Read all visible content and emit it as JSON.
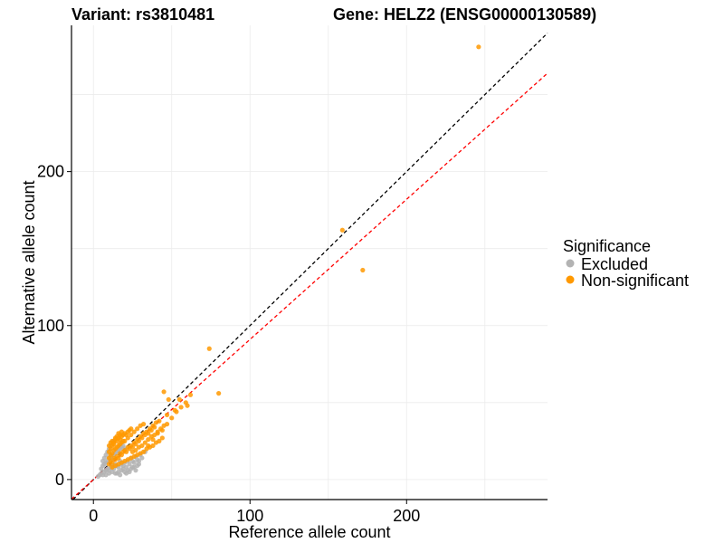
{
  "chart_data": {
    "type": "scatter",
    "title_left": "Variant: rs3810481",
    "title_right": "Gene: HELZ2 (ENSG00000130589)",
    "xlabel": "Reference allele count",
    "ylabel": "Alternative allele count",
    "xlim": [
      -14,
      290
    ],
    "ylim": [
      -13,
      295
    ],
    "x_ticks": [
      0,
      100,
      200
    ],
    "y_ticks": [
      0,
      100,
      200
    ],
    "x_tick_labels": [
      "0",
      "100",
      "200"
    ],
    "y_tick_labels": [
      "0",
      "100",
      "200"
    ],
    "grid": true,
    "legend": {
      "title": "Significance",
      "position": "right",
      "entries": [
        {
          "label": "Excluded",
          "color": "#b3b3b3"
        },
        {
          "label": "Non-significant",
          "color": "#ff9900"
        }
      ]
    },
    "reference_lines": [
      {
        "name": "identity",
        "slope": 1.0,
        "intercept": 0,
        "color": "#000000",
        "dash": true
      },
      {
        "name": "fit",
        "slope": 0.91,
        "intercept": 0,
        "color": "#ff0000",
        "dash": true
      }
    ],
    "series": [
      {
        "name": "Excluded",
        "color": "#b3b3b3",
        "points": [
          [
            3,
            2
          ],
          [
            4,
            3
          ],
          [
            5,
            4
          ],
          [
            6,
            3
          ],
          [
            7,
            5
          ],
          [
            8,
            6
          ],
          [
            9,
            7
          ],
          [
            10,
            6
          ],
          [
            11,
            8
          ],
          [
            12,
            9
          ],
          [
            13,
            7
          ],
          [
            14,
            10
          ],
          [
            15,
            9
          ],
          [
            16,
            8
          ],
          [
            17,
            12
          ],
          [
            18,
            10
          ],
          [
            19,
            9
          ],
          [
            20,
            11
          ],
          [
            21,
            8
          ],
          [
            22,
            12
          ],
          [
            23,
            10
          ],
          [
            24,
            14
          ],
          [
            25,
            12
          ],
          [
            26,
            11
          ],
          [
            27,
            15
          ],
          [
            28,
            13
          ],
          [
            29,
            12
          ],
          [
            30,
            16
          ],
          [
            5,
            7
          ],
          [
            6,
            9
          ],
          [
            7,
            10
          ],
          [
            8,
            11
          ],
          [
            9,
            12
          ],
          [
            10,
            14
          ],
          [
            11,
            15
          ],
          [
            12,
            13
          ],
          [
            13,
            16
          ],
          [
            14,
            17
          ],
          [
            15,
            18
          ],
          [
            16,
            19
          ],
          [
            17,
            20
          ],
          [
            18,
            21
          ],
          [
            19,
            22
          ],
          [
            20,
            20
          ],
          [
            8,
            3
          ],
          [
            10,
            4
          ],
          [
            12,
            5
          ],
          [
            14,
            4
          ],
          [
            16,
            5
          ],
          [
            18,
            6
          ],
          [
            20,
            5
          ],
          [
            22,
            6
          ],
          [
            24,
            7
          ],
          [
            26,
            8
          ],
          [
            28,
            9
          ],
          [
            6,
            12
          ],
          [
            7,
            14
          ],
          [
            8,
            16
          ],
          [
            9,
            18
          ],
          [
            10,
            20
          ],
          [
            11,
            22
          ],
          [
            12,
            24
          ],
          [
            13,
            25
          ],
          [
            15,
            4
          ],
          [
            17,
            3
          ],
          [
            19,
            7
          ],
          [
            21,
            4
          ],
          [
            23,
            5
          ],
          [
            25,
            8
          ],
          [
            27,
            6
          ],
          [
            29,
            10
          ],
          [
            31,
            14
          ],
          [
            33,
            18
          ]
        ]
      },
      {
        "name": "Non-significant",
        "color": "#ff9900",
        "points": [
          [
            10,
            10
          ],
          [
            11,
            12
          ],
          [
            12,
            11
          ],
          [
            13,
            14
          ],
          [
            14,
            13
          ],
          [
            15,
            15
          ],
          [
            16,
            14
          ],
          [
            17,
            17
          ],
          [
            18,
            16
          ],
          [
            19,
            18
          ],
          [
            20,
            19
          ],
          [
            21,
            18
          ],
          [
            22,
            21
          ],
          [
            23,
            20
          ],
          [
            24,
            22
          ],
          [
            25,
            21
          ],
          [
            26,
            24
          ],
          [
            27,
            23
          ],
          [
            28,
            26
          ],
          [
            29,
            25
          ],
          [
            30,
            28
          ],
          [
            31,
            27
          ],
          [
            32,
            30
          ],
          [
            33,
            29
          ],
          [
            34,
            31
          ],
          [
            35,
            30
          ],
          [
            36,
            33
          ],
          [
            37,
            32
          ],
          [
            38,
            35
          ],
          [
            39,
            34
          ],
          [
            40,
            37
          ],
          [
            10,
            18
          ],
          [
            11,
            20
          ],
          [
            12,
            22
          ],
          [
            13,
            24
          ],
          [
            14,
            26
          ],
          [
            15,
            25
          ],
          [
            16,
            27
          ],
          [
            17,
            26
          ],
          [
            18,
            28
          ],
          [
            19,
            29
          ],
          [
            20,
            30
          ],
          [
            21,
            29
          ],
          [
            22,
            31
          ],
          [
            23,
            32
          ],
          [
            24,
            33
          ],
          [
            12,
            8
          ],
          [
            14,
            9
          ],
          [
            16,
            10
          ],
          [
            18,
            11
          ],
          [
            20,
            12
          ],
          [
            22,
            13
          ],
          [
            24,
            14
          ],
          [
            26,
            15
          ],
          [
            28,
            16
          ],
          [
            30,
            17
          ],
          [
            32,
            18
          ],
          [
            34,
            20
          ],
          [
            36,
            21
          ],
          [
            38,
            22
          ],
          [
            40,
            24
          ],
          [
            42,
            25
          ],
          [
            44,
            27
          ],
          [
            10,
            14
          ],
          [
            11,
            16
          ],
          [
            12,
            17
          ],
          [
            13,
            19
          ],
          [
            14,
            20
          ],
          [
            15,
            21
          ],
          [
            16,
            22
          ],
          [
            17,
            23
          ],
          [
            18,
            24
          ],
          [
            19,
            25
          ],
          [
            25,
            18
          ],
          [
            27,
            19
          ],
          [
            29,
            21
          ],
          [
            31,
            22
          ],
          [
            33,
            24
          ],
          [
            35,
            26
          ],
          [
            37,
            28
          ],
          [
            39,
            29
          ],
          [
            41,
            31
          ],
          [
            43,
            33
          ],
          [
            45,
            35
          ],
          [
            10,
            22
          ],
          [
            11,
            24
          ],
          [
            12,
            25
          ],
          [
            13,
            23
          ],
          [
            14,
            27
          ],
          [
            15,
            28
          ],
          [
            16,
            30
          ],
          [
            17,
            29
          ],
          [
            18,
            31
          ],
          [
            20,
            25
          ],
          [
            22,
            27
          ],
          [
            24,
            29
          ],
          [
            26,
            31
          ],
          [
            28,
            33
          ],
          [
            30,
            35
          ],
          [
            32,
            36
          ],
          [
            35,
            22
          ],
          [
            38,
            26
          ],
          [
            41,
            30
          ],
          [
            44,
            32
          ],
          [
            47,
            36
          ],
          [
            50,
            40
          ],
          [
            53,
            44
          ],
          [
            56,
            47
          ],
          [
            59,
            50
          ],
          [
            62,
            55
          ],
          [
            45,
            57
          ],
          [
            48,
            52
          ],
          [
            52,
            45
          ],
          [
            55,
            52
          ],
          [
            60,
            48
          ],
          [
            47,
            42
          ],
          [
            42,
            38
          ],
          [
            74,
            85
          ],
          [
            80,
            56
          ],
          [
            159,
            162
          ],
          [
            172,
            136
          ],
          [
            246,
            281
          ]
        ]
      }
    ]
  }
}
